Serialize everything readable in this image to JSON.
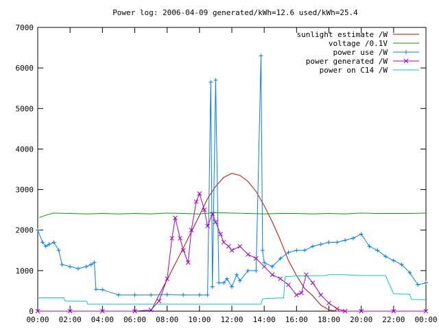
{
  "chart_data": {
    "type": "line",
    "title": "Power log: 2006-04-09 generated/kWh=12.6 used/kWh=25.4",
    "xlabel": "",
    "ylabel": "",
    "xlim": [
      0,
      24
    ],
    "ylim": [
      0,
      7000
    ],
    "x_ticks": [
      "00:00",
      "02:00",
      "04:00",
      "06:00",
      "08:00",
      "10:00",
      "12:00",
      "14:00",
      "16:00",
      "18:00",
      "20:00",
      "22:00",
      "00:00"
    ],
    "y_ticks": [
      0,
      1000,
      2000,
      3000,
      4000,
      5000,
      6000,
      7000
    ],
    "grid": false,
    "legend_position": "top-right",
    "series": [
      {
        "name": "sunlight estimate /W",
        "color": "#cc0000",
        "marker": "none",
        "x": [
          7.0,
          7.5,
          8.0,
          8.5,
          9.0,
          9.5,
          10.0,
          10.5,
          11.0,
          11.5,
          12.0,
          12.5,
          13.0,
          13.5,
          14.0,
          14.5,
          15.0,
          15.5,
          16.0,
          16.5,
          17.0,
          17.5,
          18.0,
          18.5,
          19.0
        ],
        "y": [
          0,
          400,
          780,
          1170,
          1560,
          1960,
          2360,
          2780,
          3080,
          3300,
          3400,
          3350,
          3200,
          2950,
          2600,
          2200,
          1750,
          1250,
          880,
          560,
          380,
          150,
          30,
          0,
          0
        ]
      },
      {
        "name": "voltage /0.1V",
        "color": "#00a000",
        "marker": "none",
        "x": [
          0.1,
          0.6,
          1.0,
          2.0,
          3.0,
          4.0,
          5.0,
          6.0,
          7.0,
          8.0,
          9.0,
          10.0,
          11.0,
          12.0,
          13.0,
          14.0,
          15.0,
          16.0,
          17.0,
          18.0,
          19.0,
          20.0,
          21.0,
          22.0,
          23.0,
          24.0
        ],
        "y": [
          2310,
          2380,
          2420,
          2410,
          2400,
          2410,
          2400,
          2410,
          2400,
          2420,
          2410,
          2400,
          2430,
          2420,
          2410,
          2400,
          2410,
          2410,
          2400,
          2410,
          2400,
          2420,
          2410,
          2410,
          2410,
          2420
        ]
      },
      {
        "name": "power use /W",
        "color": "#0080f0",
        "marker": "+",
        "x": [
          0.0,
          0.3,
          0.5,
          0.7,
          1.0,
          1.3,
          1.5,
          2.0,
          2.5,
          3.0,
          3.3,
          3.5,
          3.6,
          4.0,
          5.0,
          6.0,
          7.0,
          8.0,
          9.0,
          10.0,
          10.5,
          10.7,
          10.8,
          11.0,
          11.2,
          11.5,
          11.7,
          12.0,
          12.3,
          12.5,
          13.0,
          13.5,
          13.8,
          13.9,
          14.0,
          14.5,
          15.0,
          15.5,
          16.0,
          16.5,
          17.0,
          17.5,
          18.0,
          18.5,
          19.0,
          19.5,
          20.0,
          20.5,
          21.0,
          21.5,
          22.0,
          22.5,
          23.0,
          23.5,
          24.0
        ],
        "y": [
          2000,
          1700,
          1600,
          1650,
          1700,
          1500,
          1150,
          1100,
          1050,
          1100,
          1150,
          1200,
          540,
          530,
          400,
          400,
          400,
          410,
          400,
          400,
          400,
          5650,
          600,
          5700,
          700,
          700,
          800,
          600,
          900,
          750,
          1000,
          1000,
          6300,
          1500,
          1200,
          1100,
          1300,
          1450,
          1500,
          1500,
          1600,
          1650,
          1700,
          1700,
          1750,
          1800,
          1900,
          1600,
          1500,
          1350,
          1250,
          1150,
          950,
          650,
          700
        ]
      },
      {
        "name": "power generated /W",
        "color": "#a000d0",
        "marker": "x",
        "x": [
          0.0,
          2.0,
          4.0,
          6.0,
          7.0,
          7.5,
          8.0,
          8.3,
          8.5,
          8.8,
          9.0,
          9.3,
          9.5,
          9.8,
          10.0,
          10.3,
          10.5,
          10.8,
          11.0,
          11.3,
          11.5,
          11.8,
          12.0,
          12.5,
          13.0,
          13.5,
          14.0,
          14.5,
          15.0,
          15.5,
          16.0,
          16.3,
          16.6,
          17.0,
          17.5,
          18.0,
          18.5,
          19.0,
          20.0,
          22.0,
          24.0
        ],
        "y": [
          0,
          0,
          0,
          0,
          30,
          250,
          800,
          1800,
          2300,
          1800,
          1500,
          1200,
          2000,
          2700,
          2900,
          2500,
          2100,
          2400,
          2200,
          1900,
          1700,
          1600,
          1500,
          1600,
          1400,
          1300,
          1100,
          900,
          800,
          650,
          400,
          450,
          900,
          700,
          400,
          200,
          60,
          0,
          0,
          0,
          0
        ]
      },
      {
        "name": "power on C14 /W",
        "color": "#00cccc",
        "marker": "none",
        "x": [
          0.0,
          1.6,
          1.7,
          3.0,
          3.1,
          13.8,
          13.9,
          14.0,
          15.2,
          15.3,
          16.0,
          17.8,
          18.0,
          19.0,
          19.8,
          20.0,
          21.5,
          22.0,
          23.0,
          23.1,
          24.0
        ],
        "y": [
          330,
          330,
          250,
          250,
          170,
          170,
          300,
          310,
          330,
          850,
          870,
          880,
          900,
          900,
          880,
          880,
          880,
          430,
          420,
          290,
          280
        ]
      }
    ]
  }
}
